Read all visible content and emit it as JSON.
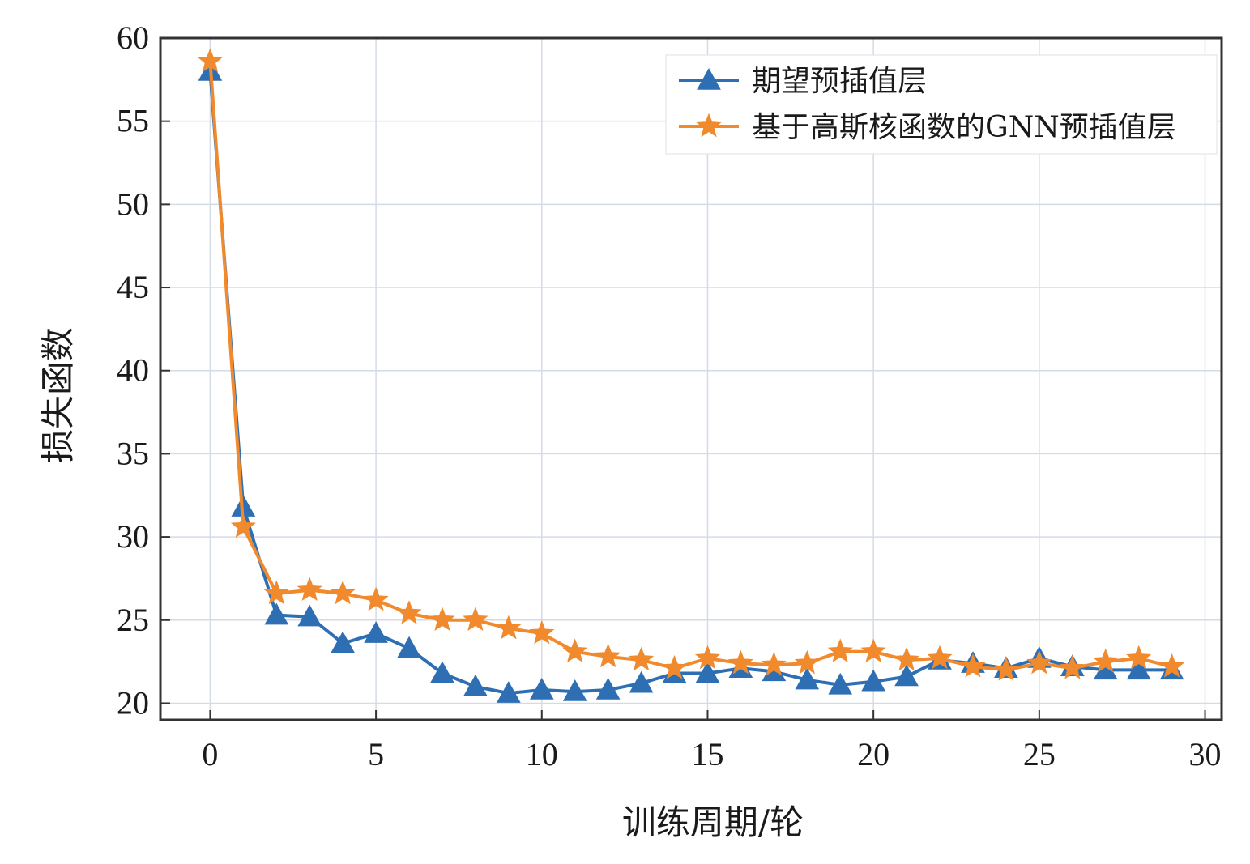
{
  "chart_data": {
    "type": "line",
    "xlabel": "训练周期/轮",
    "ylabel": "损失函数",
    "xlim": [
      -1.5,
      30.5
    ],
    "ylim": [
      19,
      60
    ],
    "xticks": [
      0,
      5,
      10,
      15,
      20,
      25,
      30
    ],
    "yticks": [
      20,
      25,
      30,
      35,
      40,
      45,
      50,
      55,
      60
    ],
    "grid": true,
    "legend_position": "top-right",
    "x": [
      0,
      1,
      2,
      3,
      4,
      5,
      6,
      7,
      8,
      9,
      10,
      11,
      12,
      13,
      14,
      15,
      16,
      17,
      18,
      19,
      20,
      21,
      22,
      23,
      24,
      25,
      26,
      27,
      28,
      29
    ],
    "series": [
      {
        "name": "期望预插值层",
        "color": "#2e6fb4",
        "marker": "triangle",
        "values": [
          58.0,
          31.8,
          25.3,
          25.2,
          23.6,
          24.2,
          23.3,
          21.8,
          21.0,
          20.6,
          20.8,
          20.7,
          20.8,
          21.2,
          21.8,
          21.8,
          22.1,
          21.9,
          21.4,
          21.1,
          21.3,
          21.6,
          22.6,
          22.4,
          22.1,
          22.7,
          22.2,
          22.0,
          22.0,
          22.0
        ]
      },
      {
        "name": "基于高斯核函数的GNN预插值层",
        "color": "#f08a2c",
        "marker": "star",
        "values": [
          58.6,
          30.6,
          26.6,
          26.8,
          26.6,
          26.2,
          25.4,
          25.0,
          25.0,
          24.5,
          24.2,
          23.1,
          22.8,
          22.6,
          22.1,
          22.7,
          22.4,
          22.3,
          22.4,
          23.1,
          23.1,
          22.6,
          22.7,
          22.2,
          22.0,
          22.4,
          22.1,
          22.5,
          22.7,
          22.2
        ]
      }
    ]
  }
}
